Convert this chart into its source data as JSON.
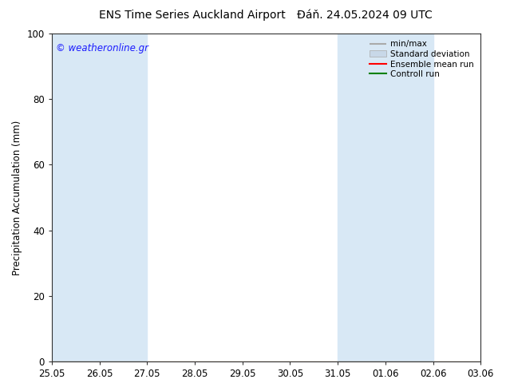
{
  "title_left": "ENS Time Series Auckland Airport",
  "title_right": "Đáň. 24.05.2024 09 UTC",
  "ylabel": "Precipitation Accumulation (mm)",
  "ylim": [
    0,
    100
  ],
  "yticks": [
    0,
    20,
    40,
    60,
    80,
    100
  ],
  "x_labels": [
    "25.05",
    "26.05",
    "27.05",
    "28.05",
    "29.05",
    "30.05",
    "31.05",
    "01.06",
    "02.06",
    "03.06"
  ],
  "watermark": "© weatheronline.gr",
  "watermark_color": "#1a1aff",
  "bg_color": "#ffffff",
  "plot_bg_color": "#ffffff",
  "shaded_color": "#d8e8f5",
  "shaded_intervals": [
    [
      0,
      1
    ],
    [
      1,
      2
    ],
    [
      6,
      7
    ],
    [
      7,
      8
    ],
    [
      9,
      9.5
    ]
  ],
  "legend_entries": [
    "min/max",
    "Standard deviation",
    "Ensemble mean run",
    "Controll run"
  ],
  "title_fontsize": 10,
  "label_fontsize": 8.5,
  "tick_fontsize": 8.5
}
